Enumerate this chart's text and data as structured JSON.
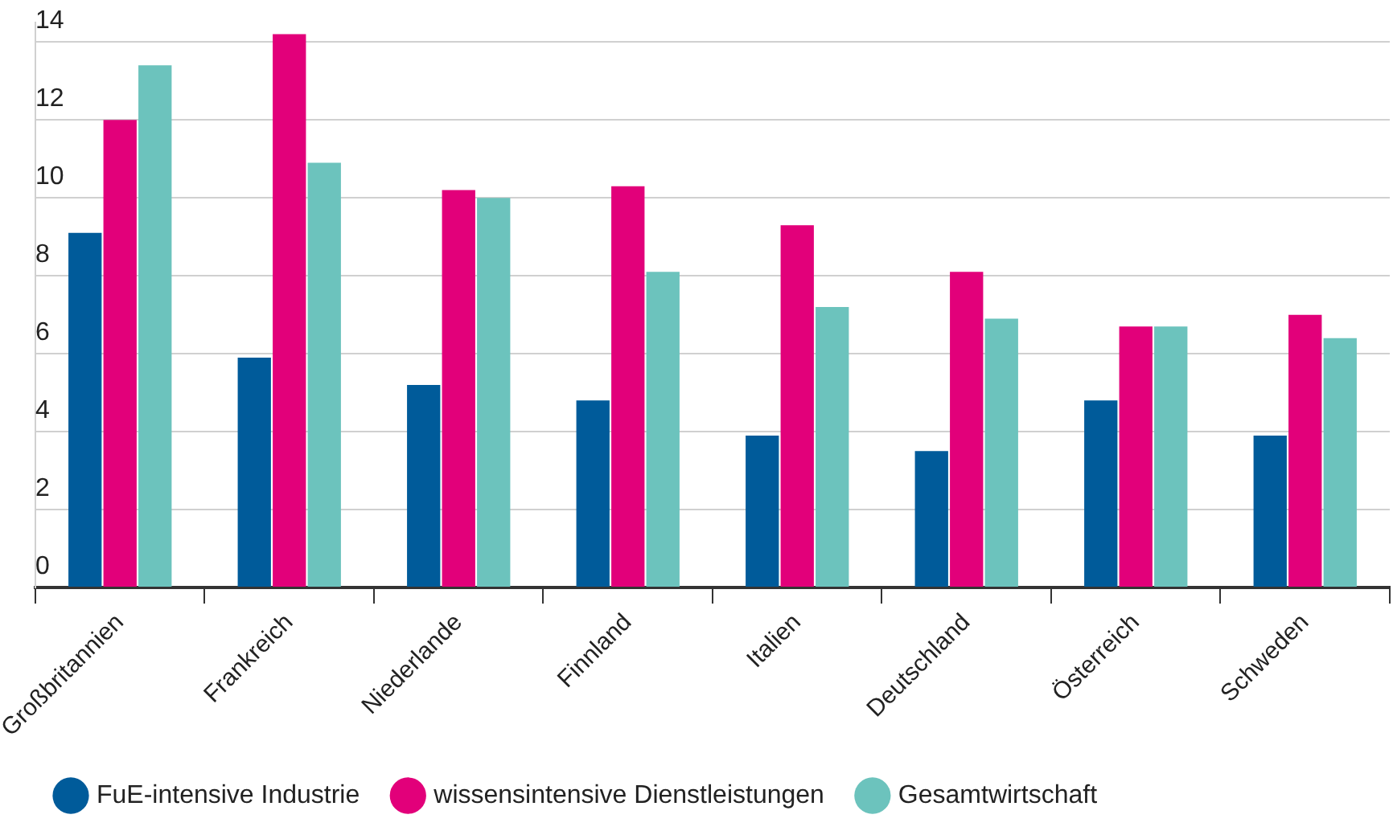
{
  "chart_data": {
    "type": "bar",
    "categories": [
      "Großbritannien",
      "Frankreich",
      "Niederlande",
      "Finnland",
      "Italien",
      "Deutschland",
      "Österreich",
      "Schweden"
    ],
    "series": [
      {
        "name": "FuE-intensive Industrie",
        "color": "#005b9a",
        "values": [
          9.1,
          5.9,
          5.2,
          4.8,
          3.9,
          3.5,
          4.8,
          3.9
        ]
      },
      {
        "name": "wissensintensive Dienstleistungen",
        "color": "#e2007a",
        "values": [
          12.0,
          14.2,
          10.2,
          10.3,
          9.3,
          8.1,
          6.7,
          7.0
        ]
      },
      {
        "name": "Gesamtwirtschaft",
        "color": "#6cc3bd",
        "values": [
          13.4,
          10.9,
          10.0,
          8.1,
          7.2,
          6.9,
          6.7,
          6.4
        ]
      }
    ],
    "ylim": [
      0,
      14.5
    ],
    "yticks": [
      0,
      2,
      4,
      6,
      8,
      10,
      12,
      14
    ],
    "grid": "y",
    "legend": "bottom"
  }
}
